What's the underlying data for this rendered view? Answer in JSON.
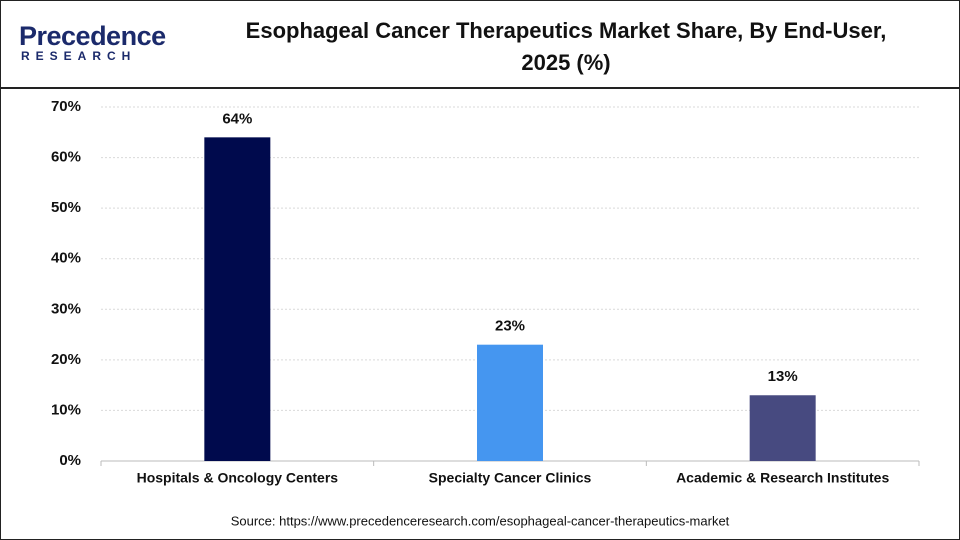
{
  "logo": {
    "name": "Precedence",
    "tagline": "RESEARCH"
  },
  "chart_data": {
    "type": "bar",
    "title": "Esophageal Cancer Therapeutics Market Share, By End-User, 2025 (%)",
    "categories": [
      "Hospitals & Oncology Centers",
      "Specialty Cancer Clinics",
      "Academic & Research Institutes"
    ],
    "values": [
      64,
      23,
      13
    ],
    "value_labels": [
      "64%",
      "23%",
      "13%"
    ],
    "colors": [
      "#000a4d",
      "#4596f0",
      "#474a80"
    ],
    "ylim": [
      0,
      70
    ],
    "yticks": [
      {
        "value": 0,
        "label": "0%"
      },
      {
        "value": 10,
        "label": "10%"
      },
      {
        "value": 20,
        "label": "20%"
      },
      {
        "value": 30,
        "label": "30%"
      },
      {
        "value": 40,
        "label": "40%"
      },
      {
        "value": 50,
        "label": "50%"
      },
      {
        "value": 60,
        "label": "60%"
      },
      {
        "value": 70,
        "label": "70%"
      }
    ],
    "grid": true,
    "source": "Source: https://www.precedenceresearch.com/esophageal-cancer-therapeutics-market"
  }
}
